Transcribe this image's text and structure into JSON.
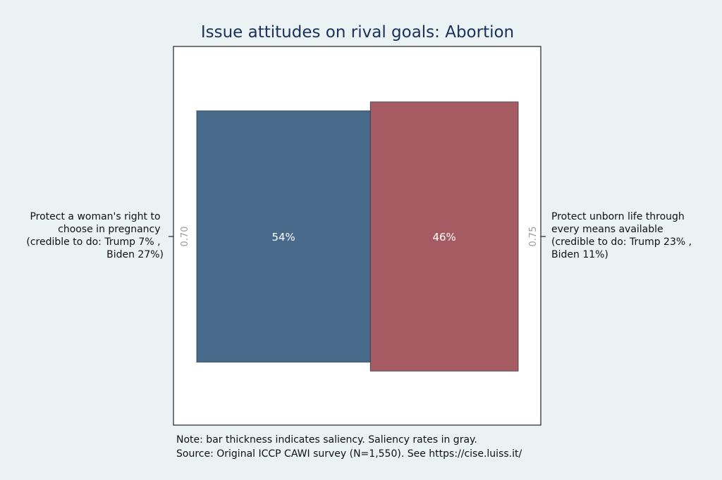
{
  "chart_data": {
    "type": "bar",
    "orientation": "horizontal-stacked",
    "title": "Issue attitudes on rival goals: Abortion",
    "xlim": [
      0,
      100
    ],
    "grid": false,
    "legend": "none",
    "goals": [
      {
        "label_lines": [
          "Protect a woman's right to",
          "choose in pregnancy",
          "(credible to do: Trump 7% ,",
          "Biden 27%)"
        ],
        "value": 54,
        "value_label": "54%",
        "saliency": 0.7,
        "saliency_label": "0.70",
        "color": "#486a8b"
      },
      {
        "label_lines": [
          "Protect unborn life through",
          "every means available",
          "(credible to do: Trump 23% ,",
          "Biden 11%)"
        ],
        "value": 46,
        "value_label": "46%",
        "saliency": 0.75,
        "saliency_label": "0.75",
        "color": "#a55b61"
      }
    ],
    "notes": [
      "Note: bar thickness indicates saliency. Saliency rates in gray.",
      "Source: Original ICCP CAWI survey (N=1,550). See https://cise.luiss.it/"
    ]
  }
}
